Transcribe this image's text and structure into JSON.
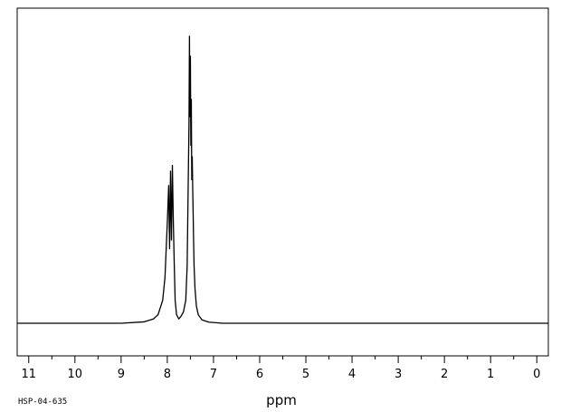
{
  "chart_data": {
    "type": "line",
    "title": "",
    "xlabel": "ppm",
    "ylabel": "",
    "sample_id": "HSP-04-635",
    "xlim": [
      11.25,
      -0.25
    ],
    "x_reversed": true,
    "major_ticks": [
      11,
      10,
      9,
      8,
      7,
      6,
      5,
      4,
      3,
      2,
      1,
      0
    ],
    "minor_ticks": [
      10.5,
      9.5,
      8.5,
      7.5,
      6.5,
      5.5,
      4.5,
      3.5,
      2.5,
      1.5,
      0.5
    ],
    "ylim": [
      0,
      1.0
    ],
    "baseline": 0,
    "grid": false,
    "series": [
      {
        "x": [
          11.25,
          9.0,
          8.5,
          8.3,
          8.2,
          8.1,
          8.05,
          8.0,
          7.97,
          7.95,
          7.93,
          7.91,
          7.89,
          7.87,
          7.85,
          7.83,
          7.8,
          7.75,
          7.7,
          7.65,
          7.6,
          7.57,
          7.55,
          7.53,
          7.52,
          7.51,
          7.5,
          7.49,
          7.48,
          7.47,
          7.46,
          7.45,
          7.44,
          7.43,
          7.42,
          7.4,
          7.37,
          7.33,
          7.25,
          7.1,
          6.8,
          -0.25
        ],
        "y": [
          0,
          0,
          0.005,
          0.015,
          0.03,
          0.08,
          0.16,
          0.35,
          0.48,
          0.26,
          0.53,
          0.29,
          0.55,
          0.36,
          0.21,
          0.08,
          0.03,
          0.015,
          0.025,
          0.04,
          0.08,
          0.2,
          0.45,
          0.7,
          1.0,
          0.72,
          0.93,
          0.62,
          0.78,
          0.5,
          0.58,
          0.47,
          0.38,
          0.28,
          0.2,
          0.12,
          0.06,
          0.03,
          0.012,
          0.004,
          0,
          0
        ]
      }
    ]
  }
}
